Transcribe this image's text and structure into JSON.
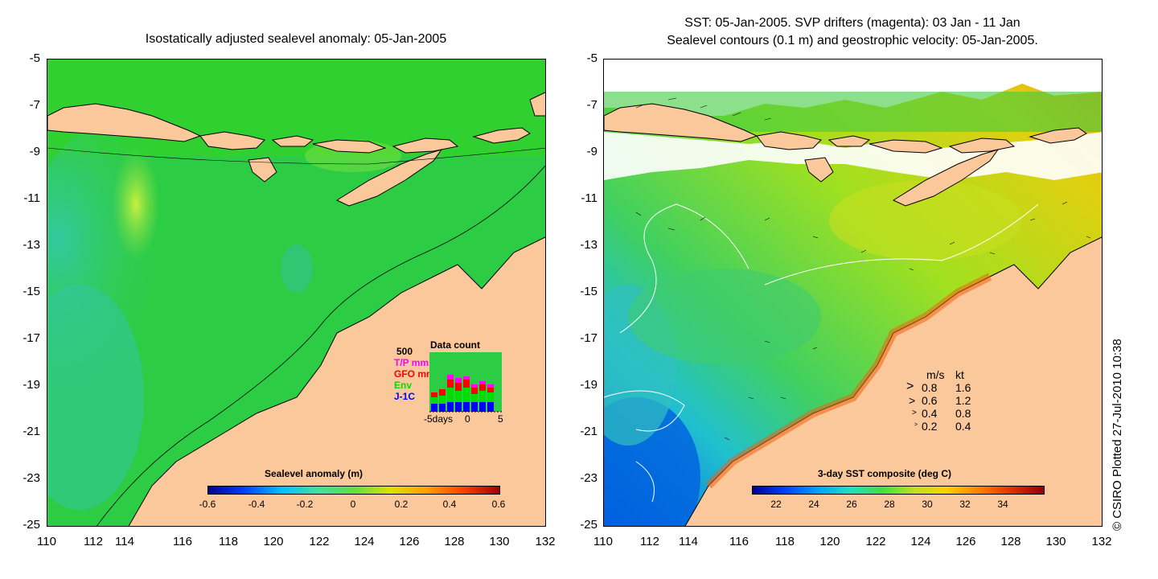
{
  "left_panel": {
    "title": "Isostatically adjusted sealevel anomaly: 05-Jan-2005",
    "colorbar": {
      "label": "Sealevel anomaly (m)",
      "ticks": [
        "-0.6",
        "-0.4",
        "-0.2",
        "0",
        "0.2",
        "0.4",
        "0.6"
      ]
    },
    "data_count": {
      "title": "Data count",
      "ymax": "500",
      "series": [
        {
          "name": "T/P mm",
          "color": "#ff00ff"
        },
        {
          "name": "GFO mm",
          "color": "#ff0000"
        },
        {
          "name": "Env",
          "color": "#00dd00"
        },
        {
          "name": "J-1C",
          "color": "#0000ff"
        }
      ],
      "xlabels": [
        "-5days",
        "0",
        "5"
      ]
    }
  },
  "right_panel": {
    "title_line1": "SST: 05-Jan-2005. SVP drifters (magenta): 03 Jan - 11 Jan",
    "title_line2": "Sealevel contours (0.1 m) and geostrophic velocity: 05-Jan-2005.",
    "colorbar": {
      "label": "3-day SST composite (deg C)",
      "ticks": [
        "22",
        "24",
        "26",
        "28",
        "30",
        "32",
        "34"
      ]
    },
    "velocity_legend": {
      "header_ms": "m/s",
      "header_kt": "kt",
      "rows": [
        {
          "ms": "0.8",
          "kt": "1.6"
        },
        {
          "ms": "0.6",
          "kt": "1.2"
        },
        {
          "ms": "0.4",
          "kt": "0.8"
        },
        {
          "ms": "0.2",
          "kt": "0.4"
        }
      ]
    }
  },
  "axes": {
    "y_ticks": [
      "-5",
      "-7",
      "-9",
      "-11",
      "-13",
      "-15",
      "-17",
      "-19",
      "-21",
      "-23",
      "-25"
    ],
    "x_ticks": [
      "110",
      "112",
      "114",
      "116",
      "118",
      "120",
      "122",
      "124",
      "126",
      "128",
      "130",
      "132"
    ]
  },
  "credit": "© CSIRO Plotted 27-Jul-2010 10:38",
  "colors": {
    "land": "#fac89a",
    "sea_mid": "#22cc33",
    "sst_warm": "#f0a010"
  }
}
